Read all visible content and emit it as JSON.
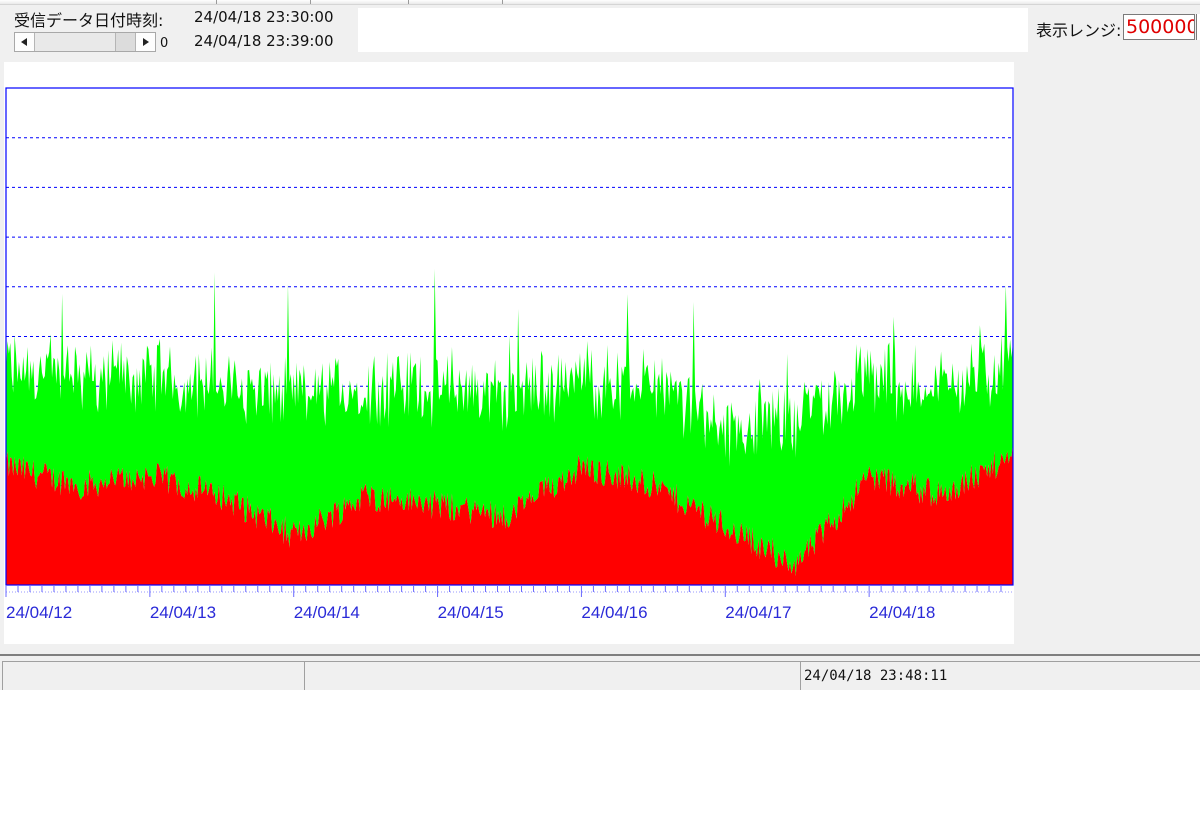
{
  "header": {
    "received_label": "受信データ日付時刻:",
    "start_time": "24/04/18 23:30:00",
    "end_time": "24/04/18 23:39:00",
    "scroll_value": "0",
    "range_label": "表示レンジ:",
    "range_value": "500000"
  },
  "colors": {
    "window_bg": "#f0f0f0",
    "frame": "#0000ff",
    "grid": "#0000ff",
    "tick_label": "#2a2ad8",
    "series_green": "#00ff00",
    "series_red": "#ff0000",
    "range_text": "#e00000"
  },
  "icons": {
    "scroll_left": "triangle-left-icon",
    "scroll_right": "triangle-right-icon"
  },
  "chart_data": {
    "type": "area",
    "stacked": true,
    "title": "",
    "xlabel": "",
    "ylabel": "",
    "grid": "horizontal dashed",
    "ylim": [
      0,
      500000
    ],
    "x_tick_labels": [
      "24/04/12",
      "24/04/13",
      "24/04/14",
      "24/04/15",
      "24/04/16",
      "24/04/17",
      "24/04/18"
    ],
    "x": [
      "24/04/12",
      "24/04/12 12:00",
      "24/04/13",
      "24/04/13 12:00",
      "24/04/14",
      "24/04/14 12:00",
      "24/04/15",
      "24/04/15 12:00",
      "24/04/16",
      "24/04/16 12:00",
      "24/04/17",
      "24/04/17 12:00",
      "24/04/18",
      "24/04/18 12:00",
      "24/04/18 23:39"
    ],
    "series": [
      {
        "color": "#ff0000",
        "values": [
          120000,
          100000,
          110000,
          90000,
          50000,
          90000,
          80000,
          70000,
          120000,
          100000,
          60000,
          20000,
          110000,
          90000,
          130000
        ]
      },
      {
        "color": "#00ff00",
        "values": [
          100000,
          110000,
          100000,
          110000,
          140000,
          110000,
          120000,
          120000,
          90000,
          100000,
          100000,
          150000,
          100000,
          110000,
          90000
        ]
      }
    ]
  },
  "status": {
    "datetime": "24/04/18 23:48:11"
  }
}
